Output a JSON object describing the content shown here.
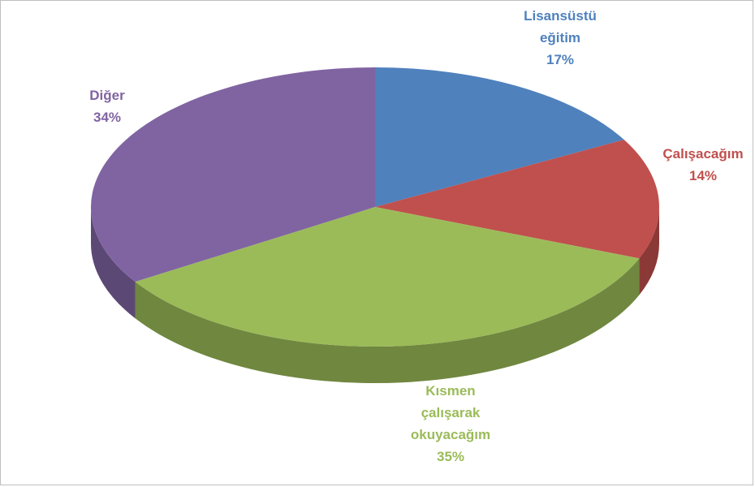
{
  "chart_data": {
    "type": "pie3d",
    "categories": [
      "Lisansüstü eğitim",
      "Çalışacağım",
      "Kısmen çalışarak okuyacağım",
      "Diğer"
    ],
    "values": [
      17,
      14,
      35,
      34
    ],
    "value_labels": [
      "17%",
      "14%",
      "35%",
      "34%"
    ],
    "colors": [
      "#4f81bd",
      "#c0504d",
      "#9bbb59",
      "#8064a2"
    ]
  }
}
